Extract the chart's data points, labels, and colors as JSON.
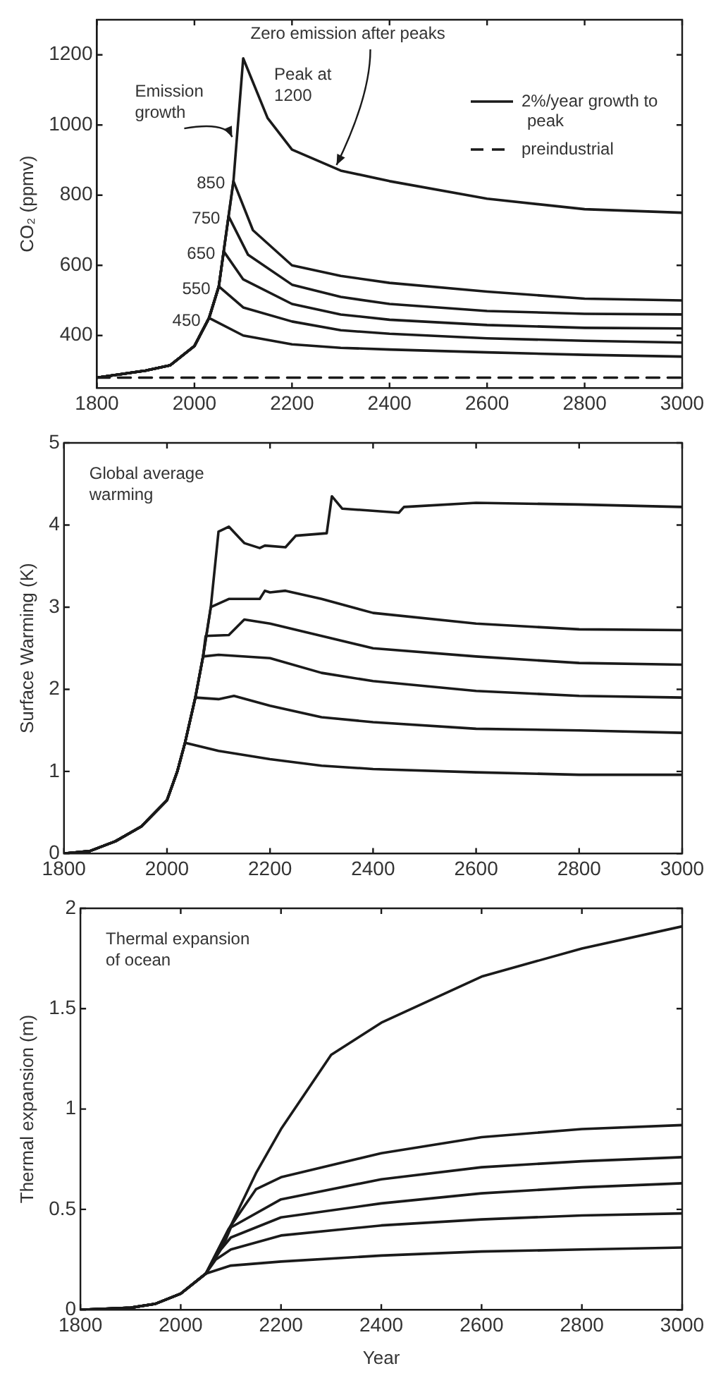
{
  "chart_data": [
    {
      "type": "line",
      "ylabel": "CO₂ (ppmv)",
      "xlim": [
        1800,
        3000
      ],
      "xticks": [
        1800,
        2000,
        2200,
        2400,
        2600,
        2800,
        3000
      ],
      "ylim": [
        250,
        1300
      ],
      "yticks": [
        400,
        600,
        800,
        1000,
        1200
      ],
      "grid": false,
      "legend": "top right",
      "marker": "none",
      "line_style": "solid",
      "annotations": [
        {
          "text": "Emission growth",
          "x": 2086,
          "y": 950
        },
        {
          "text": "Zero emission after peaks",
          "x": 2300,
          "y": 870
        },
        {
          "text": "Peak at 1200",
          "x": 2100,
          "y": 1190
        },
        {
          "text": "850",
          "x": 2080,
          "y": 840
        },
        {
          "text": "750",
          "x": 2070,
          "y": 740
        },
        {
          "text": "650",
          "x": 2060,
          "y": 640
        },
        {
          "text": "550",
          "x": 2050,
          "y": 540
        },
        {
          "text": "450",
          "x": 2030,
          "y": 450
        }
      ],
      "series": [
        {
          "name": "2%/year growth to peak",
          "color": "#1a1a1a",
          "x": [
            1800,
            1900,
            1950,
            2000,
            2030,
            2050,
            2060,
            2070,
            2080,
            2100,
            2150,
            2200,
            2300,
            2400,
            2600,
            2800,
            3000
          ],
          "values": [
            280,
            300,
            315,
            370,
            450,
            540,
            640,
            740,
            840,
            1190,
            1020,
            930,
            870,
            840,
            790,
            760,
            750
          ]
        },
        {
          "color": "#1a1a1a",
          "x": [
            1800,
            1900,
            1950,
            2000,
            2030,
            2050,
            2060,
            2070,
            2080,
            2120,
            2200,
            2300,
            2400,
            2600,
            2800,
            3000
          ],
          "values": [
            280,
            300,
            315,
            370,
            450,
            540,
            640,
            740,
            840,
            700,
            600,
            570,
            550,
            525,
            505,
            500
          ]
        },
        {
          "color": "#1a1a1a",
          "x": [
            1800,
            1900,
            1950,
            2000,
            2030,
            2050,
            2060,
            2070,
            2110,
            2200,
            2300,
            2400,
            2600,
            2800,
            3000
          ],
          "values": [
            280,
            300,
            315,
            370,
            450,
            540,
            640,
            740,
            630,
            545,
            510,
            490,
            470,
            462,
            460
          ]
        },
        {
          "color": "#1a1a1a",
          "x": [
            1800,
            1900,
            1950,
            2000,
            2030,
            2050,
            2060,
            2100,
            2200,
            2300,
            2400,
            2600,
            2800,
            3000
          ],
          "values": [
            280,
            300,
            315,
            370,
            450,
            540,
            640,
            560,
            490,
            460,
            445,
            430,
            422,
            420
          ]
        },
        {
          "color": "#1a1a1a",
          "x": [
            1800,
            1900,
            1950,
            2000,
            2030,
            2050,
            2100,
            2200,
            2300,
            2400,
            2600,
            2800,
            3000
          ],
          "values": [
            280,
            300,
            315,
            370,
            450,
            540,
            480,
            440,
            415,
            405,
            392,
            385,
            380
          ]
        },
        {
          "color": "#1a1a1a",
          "x": [
            1800,
            1900,
            1950,
            2000,
            2030,
            2100,
            2200,
            2300,
            2400,
            2600,
            2800,
            3000
          ],
          "values": [
            280,
            300,
            315,
            370,
            450,
            400,
            375,
            365,
            360,
            352,
            345,
            340
          ]
        },
        {
          "name": "preindustrial",
          "color": "#1a1a1a",
          "line_style": "dashed",
          "x": [
            1800,
            3000
          ],
          "values": [
            280,
            280
          ]
        }
      ]
    },
    {
      "type": "line",
      "ylabel": "Surface Warming (K)",
      "xlim": [
        1800,
        3000
      ],
      "xticks": [
        1800,
        2000,
        2200,
        2400,
        2600,
        2800,
        3000
      ],
      "ylim": [
        0,
        5
      ],
      "yticks": [
        0,
        1,
        2,
        3,
        4,
        5
      ],
      "grid": false,
      "marker": "none",
      "line_style": "solid",
      "annotations": [
        "Global average warming"
      ],
      "series": [
        {
          "color": "#1a1a1a",
          "x": [
            1800,
            1850,
            1900,
            1950,
            2000,
            2020,
            2035,
            2100,
            2200,
            2300,
            2400,
            2600,
            2800,
            3000
          ],
          "values": [
            0,
            0.03,
            0.15,
            0.33,
            0.65,
            1.0,
            1.35,
            1.25,
            1.15,
            1.07,
            1.03,
            0.99,
            0.96,
            0.96
          ]
        },
        {
          "color": "#1a1a1a",
          "x": [
            1800,
            1850,
            1900,
            1950,
            2000,
            2020,
            2035,
            2055,
            2100,
            2130,
            2200,
            2300,
            2400,
            2600,
            2800,
            3000
          ],
          "values": [
            0,
            0.03,
            0.15,
            0.33,
            0.65,
            1.0,
            1.35,
            1.9,
            1.88,
            1.92,
            1.8,
            1.66,
            1.6,
            1.52,
            1.5,
            1.47
          ]
        },
        {
          "color": "#1a1a1a",
          "x": [
            1800,
            1850,
            1900,
            1950,
            2000,
            2020,
            2035,
            2055,
            2070,
            2100,
            2200,
            2300,
            2400,
            2600,
            2800,
            3000
          ],
          "values": [
            0,
            0.03,
            0.15,
            0.33,
            0.65,
            1.0,
            1.35,
            1.9,
            2.4,
            2.42,
            2.38,
            2.2,
            2.1,
            1.98,
            1.92,
            1.9
          ]
        },
        {
          "color": "#1a1a1a",
          "x": [
            1800,
            1850,
            1900,
            1950,
            2000,
            2020,
            2035,
            2055,
            2070,
            2075,
            2120,
            2150,
            2200,
            2300,
            2400,
            2600,
            2800,
            3000
          ],
          "values": [
            0,
            0.03,
            0.15,
            0.33,
            0.65,
            1.0,
            1.35,
            1.9,
            2.4,
            2.65,
            2.66,
            2.85,
            2.8,
            2.65,
            2.5,
            2.4,
            2.32,
            2.3
          ]
        },
        {
          "color": "#1a1a1a",
          "x": [
            1800,
            1850,
            1900,
            1950,
            2000,
            2020,
            2035,
            2055,
            2070,
            2085,
            2120,
            2180,
            2190,
            2200,
            2230,
            2300,
            2400,
            2600,
            2800,
            3000
          ],
          "values": [
            0,
            0.03,
            0.15,
            0.33,
            0.65,
            1.0,
            1.35,
            1.9,
            2.4,
            3.0,
            3.1,
            3.1,
            3.2,
            3.18,
            3.2,
            3.1,
            2.93,
            2.8,
            2.73,
            2.72
          ]
        },
        {
          "color": "#1a1a1a",
          "x": [
            1800,
            1850,
            1900,
            1950,
            2000,
            2020,
            2035,
            2055,
            2070,
            2085,
            2100,
            2120,
            2150,
            2180,
            2190,
            2230,
            2250,
            2310,
            2320,
            2340,
            2450,
            2460,
            2600,
            2800,
            3000
          ],
          "values": [
            0,
            0.03,
            0.15,
            0.33,
            0.65,
            1.0,
            1.35,
            1.9,
            2.4,
            3.0,
            3.92,
            3.98,
            3.78,
            3.72,
            3.75,
            3.73,
            3.87,
            3.9,
            4.35,
            4.2,
            4.15,
            4.22,
            4.27,
            4.25,
            4.22
          ]
        }
      ]
    },
    {
      "type": "line",
      "xlabel": "Year",
      "ylabel": "Thermal expansion (m)",
      "xlim": [
        1800,
        3000
      ],
      "xticks": [
        1800,
        2000,
        2200,
        2400,
        2600,
        2800,
        3000
      ],
      "ylim": [
        0,
        2
      ],
      "yticks": [
        0,
        0.5,
        1,
        1.5,
        2
      ],
      "grid": false,
      "marker": "none",
      "line_style": "solid",
      "annotations": [
        "Thermal expansion of ocean"
      ],
      "series": [
        {
          "color": "#1a1a1a",
          "x": [
            1800,
            1900,
            1950,
            2000,
            2050,
            2100,
            2200,
            2400,
            2600,
            2800,
            3000
          ],
          "values": [
            0,
            0.01,
            0.03,
            0.08,
            0.18,
            0.22,
            0.24,
            0.27,
            0.29,
            0.3,
            0.31
          ]
        },
        {
          "color": "#1a1a1a",
          "x": [
            1800,
            1900,
            1950,
            2000,
            2050,
            2070,
            2100,
            2200,
            2400,
            2600,
            2800,
            3000
          ],
          "values": [
            0,
            0.01,
            0.03,
            0.08,
            0.18,
            0.25,
            0.3,
            0.37,
            0.42,
            0.45,
            0.47,
            0.48
          ]
        },
        {
          "color": "#1a1a1a",
          "x": [
            1800,
            1900,
            1950,
            2000,
            2050,
            2080,
            2100,
            2200,
            2400,
            2600,
            2800,
            3000
          ],
          "values": [
            0,
            0.01,
            0.03,
            0.08,
            0.18,
            0.3,
            0.36,
            0.46,
            0.53,
            0.58,
            0.61,
            0.63
          ]
        },
        {
          "color": "#1a1a1a",
          "x": [
            1800,
            1900,
            1950,
            2000,
            2050,
            2090,
            2100,
            2200,
            2400,
            2600,
            2800,
            3000
          ],
          "values": [
            0,
            0.01,
            0.03,
            0.08,
            0.18,
            0.35,
            0.41,
            0.55,
            0.65,
            0.71,
            0.74,
            0.76
          ]
        },
        {
          "color": "#1a1a1a",
          "x": [
            1800,
            1900,
            1950,
            2000,
            2050,
            2095,
            2150,
            2200,
            2400,
            2600,
            2800,
            3000
          ],
          "values": [
            0,
            0.01,
            0.03,
            0.08,
            0.18,
            0.4,
            0.6,
            0.66,
            0.78,
            0.86,
            0.9,
            0.92
          ]
        },
        {
          "color": "#1a1a1a",
          "x": [
            1800,
            1900,
            1950,
            2000,
            2050,
            2100,
            2150,
            2200,
            2300,
            2400,
            2600,
            2800,
            3000
          ],
          "values": [
            0,
            0.01,
            0.03,
            0.08,
            0.18,
            0.42,
            0.68,
            0.9,
            1.27,
            1.43,
            1.66,
            1.8,
            1.91
          ]
        }
      ]
    }
  ]
}
